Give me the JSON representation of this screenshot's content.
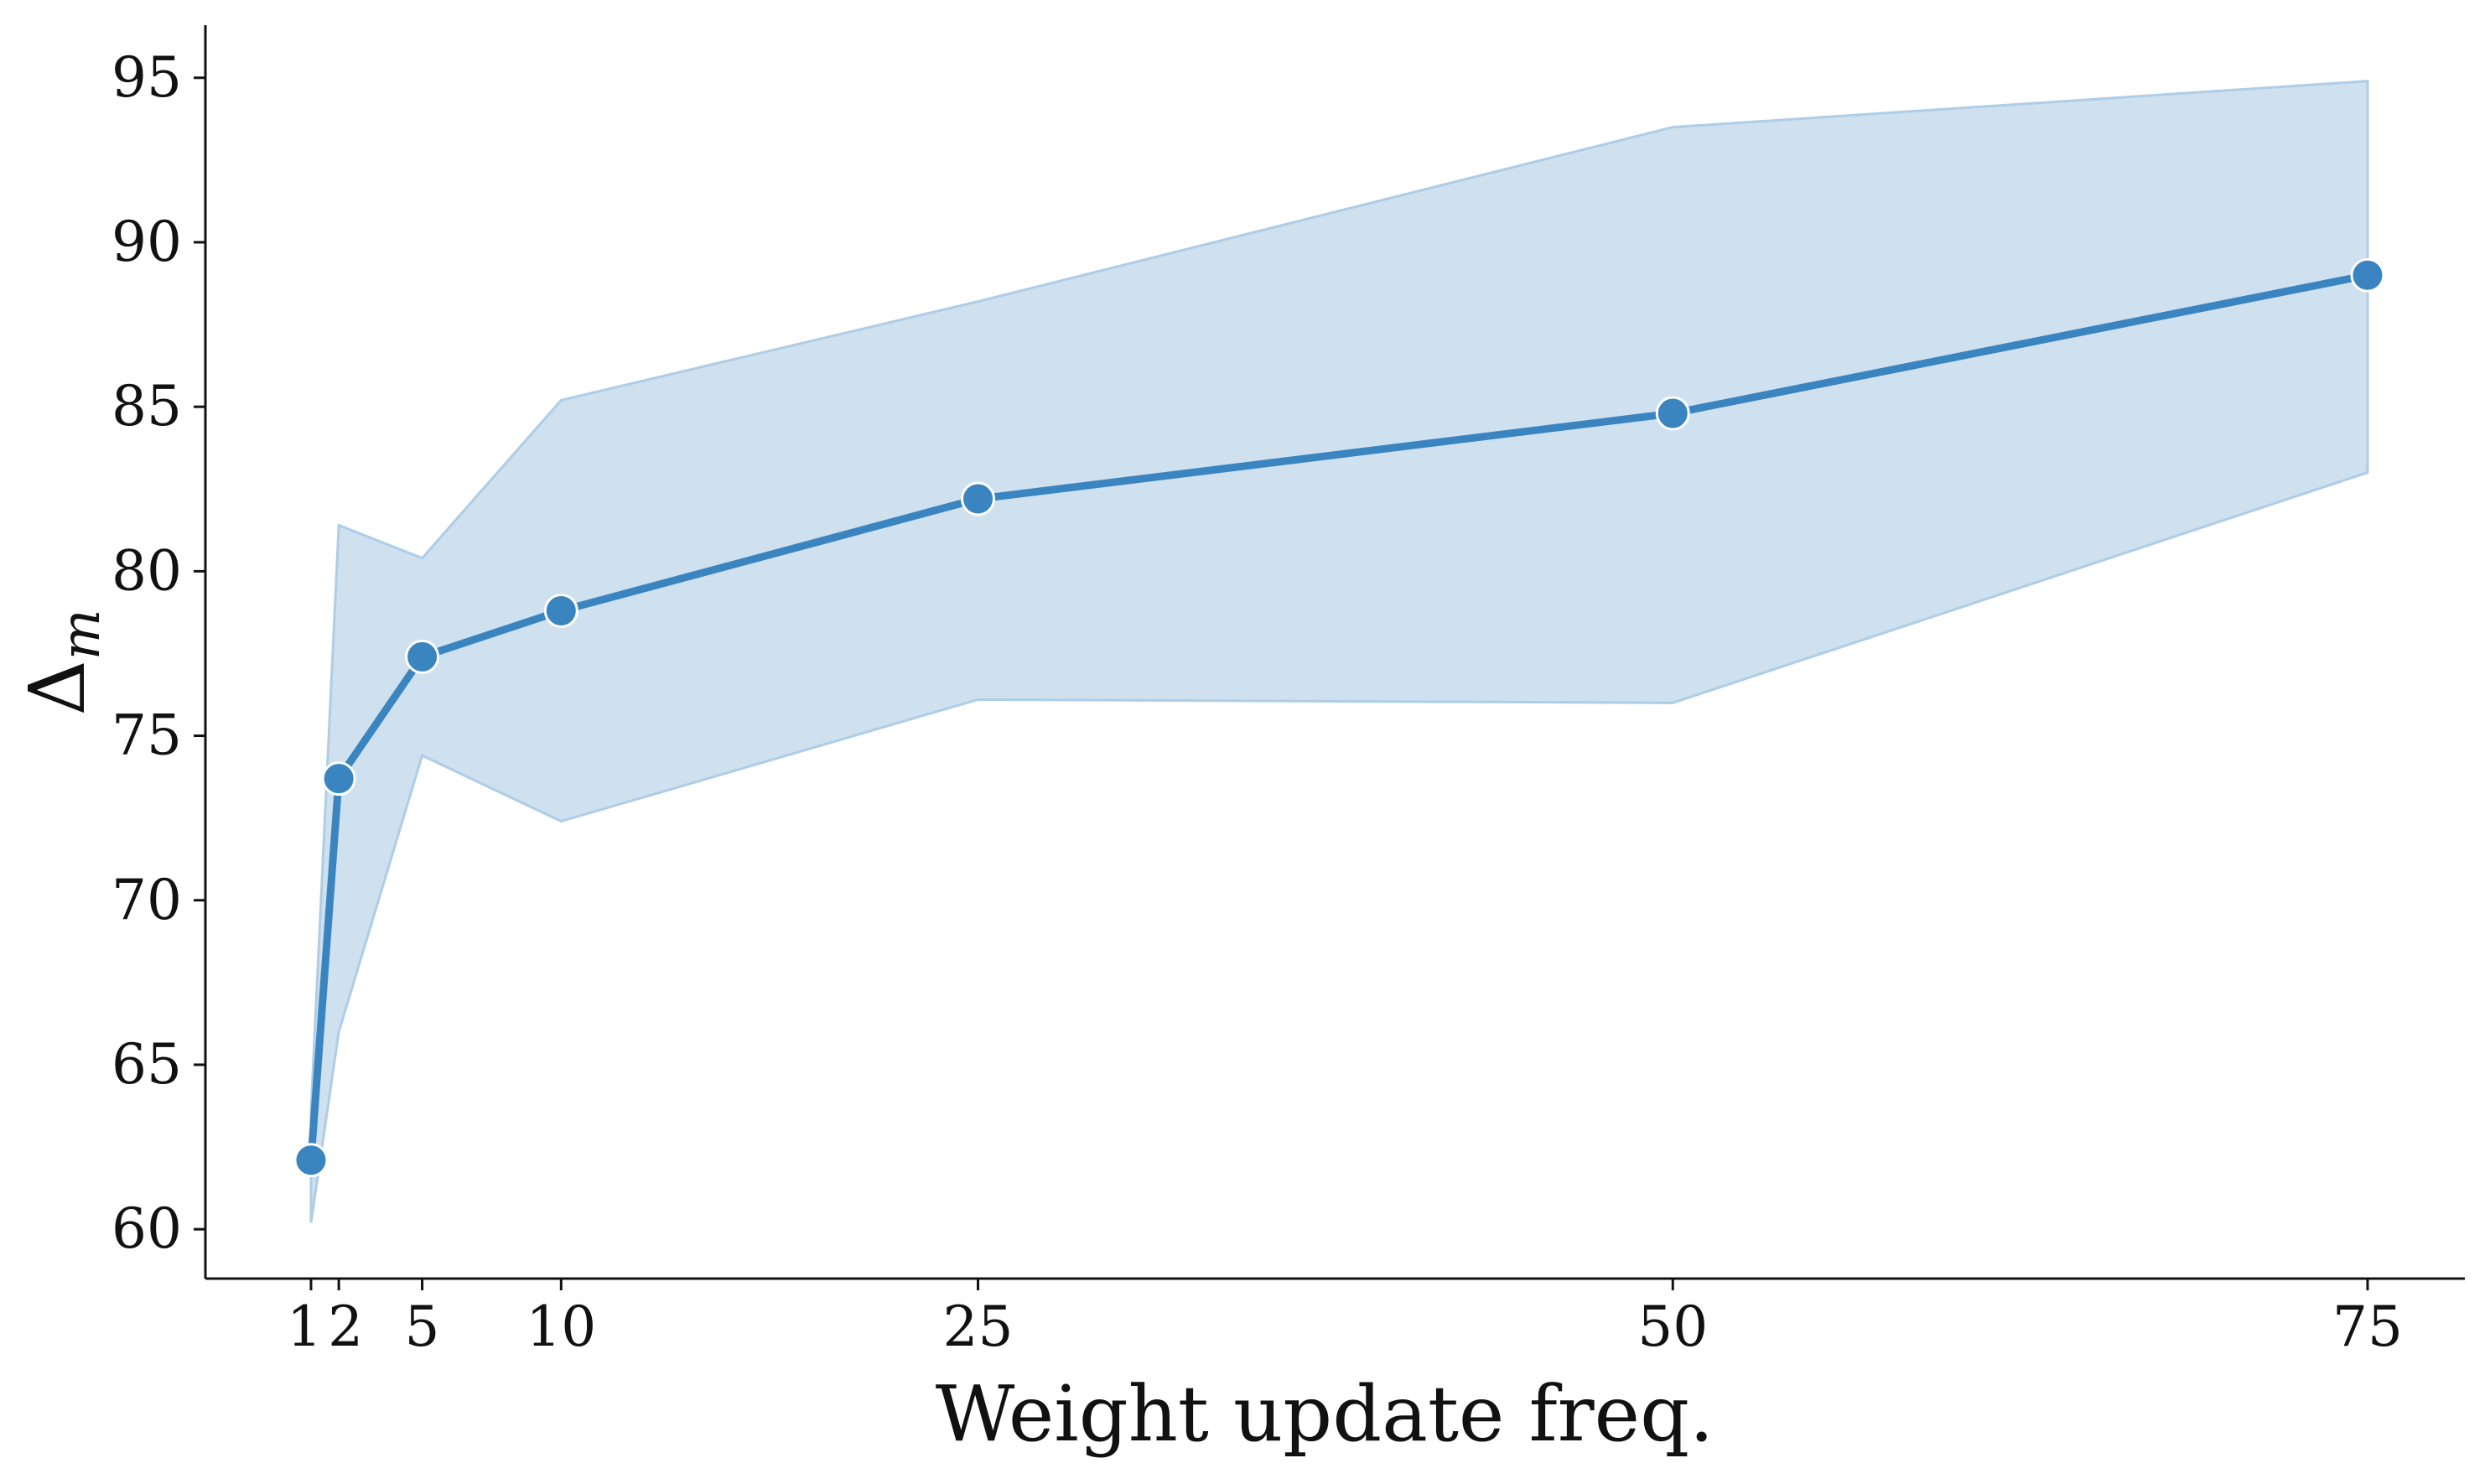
{
  "chart_data": {
    "type": "line",
    "xlabel": "Weight update freq.",
    "ylabel": "Δ",
    "ylabel_sub": "m",
    "xlim": [
      -2.8,
      78.5
    ],
    "ylim": [
      58.5,
      96.6
    ],
    "x_ticks": [
      1,
      2,
      5,
      10,
      25,
      50,
      75
    ],
    "x_tick_labels": [
      "1",
      "2",
      "5",
      "10",
      "25",
      "50",
      "75"
    ],
    "y_ticks": [
      60,
      65,
      70,
      75,
      80,
      85,
      90,
      95
    ],
    "y_tick_labels": [
      "60",
      "65",
      "70",
      "75",
      "80",
      "85",
      "90",
      "95"
    ],
    "series": [
      {
        "name": "Δm",
        "x": [
          1,
          2,
          5,
          10,
          25,
          50,
          75
        ],
        "values": [
          62.1,
          73.7,
          77.4,
          78.8,
          82.2,
          84.8,
          89.0
        ],
        "ci_lower": [
          60.2,
          66.0,
          74.4,
          72.4,
          76.1,
          76.0,
          83.0
        ],
        "ci_upper": [
          63.6,
          81.4,
          80.4,
          85.2,
          88.2,
          93.5,
          94.9
        ]
      }
    ],
    "colors": {
      "line": "#3a85c0",
      "band": "#cfe0ef",
      "band_edge": "#aecde6",
      "marker_edge": "#ffffff",
      "axis": "#111111"
    }
  }
}
